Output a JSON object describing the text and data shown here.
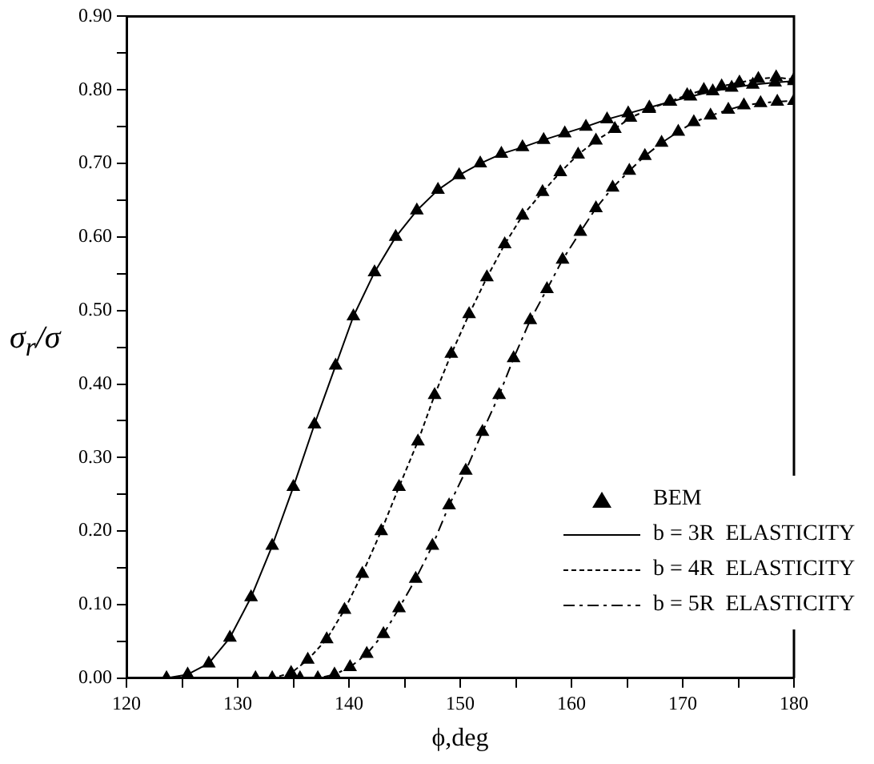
{
  "chart_data": {
    "type": "line",
    "xlabel": "ϕ,deg",
    "ylabel": "σ$_{r}$/σ",
    "xlim": [
      120,
      180
    ],
    "ylim": [
      0,
      0.9
    ],
    "xticks": [
      120,
      {
        "value": 125,
        "label": null
      },
      130,
      {
        "value": 135,
        "label": null
      },
      140,
      {
        "value": 145,
        "label": null
      },
      150,
      {
        "value": 155,
        "label": null
      },
      160,
      {
        "value": 165,
        "label": null
      },
      170,
      {
        "value": 175,
        "label": null
      },
      180
    ],
    "yticks": [
      {
        "value": 0,
        "label": "0.00"
      },
      {
        "value": 0.05,
        "label": null
      },
      {
        "value": 0.1,
        "label": "0.10"
      },
      {
        "value": 0.15,
        "label": null
      },
      {
        "value": 0.2,
        "label": "0.20"
      },
      {
        "value": 0.25,
        "label": null
      },
      {
        "value": 0.3,
        "label": "0.30"
      },
      {
        "value": 0.35,
        "label": null
      },
      {
        "value": 0.4,
        "label": "0.40"
      },
      {
        "value": 0.45,
        "label": null
      },
      {
        "value": 0.5,
        "label": "0.50"
      },
      {
        "value": 0.55,
        "label": null
      },
      {
        "value": 0.6,
        "label": "0.60"
      },
      {
        "value": 0.65,
        "label": null
      },
      {
        "value": 0.7,
        "label": "0.70"
      },
      {
        "value": 0.75,
        "label": null
      },
      {
        "value": 0.8,
        "label": "0.80"
      },
      {
        "value": 0.85,
        "label": null
      },
      {
        "value": 0.9,
        "label": "0.90"
      }
    ],
    "grid": false,
    "legend": "bottom right",
    "series": [
      {
        "name": "BEM",
        "type": "scatter",
        "marker": "triangle",
        "color": "#000000",
        "x": [
          123.6,
          125.5,
          127.4,
          129.3,
          131.2,
          133.1,
          135.0,
          136.9,
          138.8,
          140.4,
          142.3,
          144.2,
          146.1,
          148.0,
          149.9,
          151.8,
          153.7,
          155.6,
          157.5,
          159.4,
          161.3,
          163.2,
          165.1,
          167.0,
          168.9,
          170.7,
          172.7,
          174.4,
          176.3,
          178.3,
          180,
          131.6,
          133.1,
          134.8,
          136.3,
          138.0,
          139.6,
          141.2,
          142.9,
          144.5,
          146.2,
          147.7,
          149.2,
          150.8,
          152.4,
          154.0,
          155.6,
          157.4,
          159.0,
          160.6,
          162.2,
          163.9,
          165.3,
          167.0,
          168.8,
          170.4,
          171.9,
          173.5,
          175.1,
          176.8,
          178.4,
          180,
          135.6,
          137.2,
          138.7,
          140.1,
          141.6,
          143.1,
          144.5,
          146.0,
          147.5,
          149.0,
          150.5,
          152.0,
          153.5,
          154.8,
          156.3,
          157.8,
          159.2,
          160.8,
          162.2,
          163.7,
          165.2,
          166.6,
          168.1,
          169.6,
          171.0,
          172.5,
          174.1,
          175.5,
          177.0,
          178.5,
          180
        ],
        "values": [
          0,
          0.005,
          0.02,
          0.055,
          0.11,
          0.18,
          0.26,
          0.345,
          0.425,
          0.492,
          0.552,
          0.6,
          0.636,
          0.664,
          0.684,
          0.7,
          0.713,
          0.722,
          0.732,
          0.741,
          0.75,
          0.76,
          0.768,
          0.776,
          0.784,
          0.791,
          0.798,
          0.803,
          0.807,
          0.81,
          0.812,
          0,
          0,
          0.007,
          0.025,
          0.053,
          0.093,
          0.142,
          0.2,
          0.26,
          0.322,
          0.385,
          0.441,
          0.495,
          0.545,
          0.59,
          0.629,
          0.661,
          0.688,
          0.712,
          0.731,
          0.747,
          0.762,
          0.774,
          0.784,
          0.793,
          0.8,
          0.805,
          0.81,
          0.815,
          0.817,
          0.814,
          0,
          0,
          0.005,
          0.015,
          0.033,
          0.06,
          0.095,
          0.135,
          0.18,
          0.235,
          0.282,
          0.335,
          0.385,
          0.435,
          0.487,
          0.529,
          0.569,
          0.607,
          0.639,
          0.667,
          0.69,
          0.71,
          0.728,
          0.743,
          0.756,
          0.765,
          0.773,
          0.779,
          0.782,
          0.784,
          0.785
        ]
      },
      {
        "name": "b = 3R  ELASTICITY",
        "marker": "none",
        "line_style": "solid",
        "color": "#000000",
        "x": [
          123.6,
          125.5,
          127.4,
          129.3,
          131.2,
          133.1,
          135.0,
          136.9,
          138.8,
          140.4,
          142.3,
          144.2,
          146.1,
          148.0,
          149.9,
          151.8,
          153.7,
          155.6,
          157.5,
          159.4,
          161.3,
          163.2,
          165.1,
          167.0,
          168.9,
          170.7,
          172.7,
          174.4,
          176.3,
          178.3,
          180
        ],
        "values": [
          0,
          0.005,
          0.02,
          0.055,
          0.11,
          0.18,
          0.26,
          0.345,
          0.425,
          0.492,
          0.552,
          0.6,
          0.636,
          0.664,
          0.684,
          0.7,
          0.713,
          0.722,
          0.732,
          0.741,
          0.75,
          0.76,
          0.768,
          0.776,
          0.784,
          0.791,
          0.798,
          0.803,
          0.807,
          0.81,
          0.812
        ]
      },
      {
        "name": "b = 4R  ELASTICITY",
        "marker": "none",
        "line_style": "dotted",
        "color": "#000000",
        "x": [
          131.6,
          133.1,
          134.8,
          136.3,
          138.0,
          139.6,
          141.2,
          142.9,
          144.5,
          146.2,
          147.7,
          149.2,
          150.8,
          152.4,
          154.0,
          155.6,
          157.4,
          159.0,
          160.6,
          162.2,
          163.9,
          165.3,
          167.0,
          168.8,
          170.4,
          171.9,
          173.5,
          175.1,
          176.8,
          178.4,
          180
        ],
        "values": [
          0,
          0,
          0.007,
          0.025,
          0.053,
          0.093,
          0.142,
          0.2,
          0.26,
          0.322,
          0.385,
          0.441,
          0.495,
          0.545,
          0.59,
          0.629,
          0.661,
          0.688,
          0.712,
          0.731,
          0.747,
          0.762,
          0.774,
          0.784,
          0.793,
          0.8,
          0.805,
          0.81,
          0.815,
          0.817,
          0.814
        ]
      },
      {
        "name": "b = 5R  ELASTICITY",
        "marker": "none",
        "line_style": "dashed",
        "color": "#000000",
        "x": [
          135.6,
          137.2,
          138.7,
          140.1,
          141.6,
          143.1,
          144.5,
          146.0,
          147.5,
          149.0,
          150.5,
          152.0,
          153.5,
          154.8,
          156.3,
          157.8,
          159.2,
          160.8,
          162.2,
          163.7,
          165.2,
          166.6,
          168.1,
          169.6,
          171.0,
          172.5,
          174.1,
          175.5,
          177.0,
          178.5,
          180
        ],
        "values": [
          0,
          0,
          0.005,
          0.015,
          0.033,
          0.06,
          0.095,
          0.135,
          0.18,
          0.235,
          0.282,
          0.335,
          0.385,
          0.435,
          0.487,
          0.529,
          0.569,
          0.607,
          0.639,
          0.667,
          0.69,
          0.71,
          0.728,
          0.743,
          0.756,
          0.765,
          0.773,
          0.779,
          0.782,
          0.784,
          0.785
        ]
      }
    ]
  }
}
